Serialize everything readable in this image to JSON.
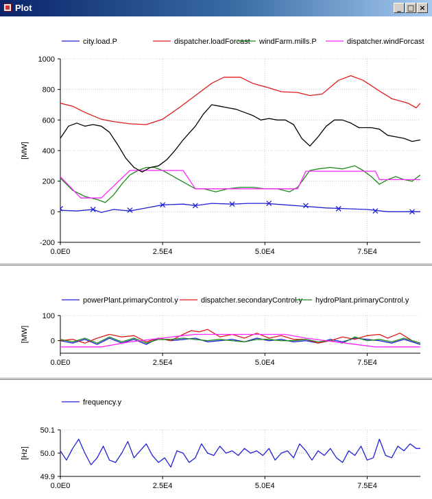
{
  "window": {
    "title": "Plot"
  },
  "colors": {
    "blue": "#1f1fd6",
    "red": "#e01a1a",
    "green": "#1a8a1a",
    "magenta": "#ff22ff",
    "black": "#000000"
  },
  "icons": {
    "app": "plot-app-icon",
    "minimize": "minimize-icon",
    "maximize": "maximize-icon",
    "close": "close-icon"
  },
  "chart_data": [
    {
      "type": "line",
      "id": "power",
      "title": "",
      "xlabel": "",
      "ylabel": "[MW]",
      "xlim": [
        0,
        88000
      ],
      "ylim": [
        -200,
        1000
      ],
      "yticks": [
        -200,
        0,
        200,
        400,
        600,
        800,
        1000
      ],
      "ytick_labels": [
        "-200",
        "0",
        "200",
        "400",
        "600",
        "800",
        "1000"
      ],
      "xticks": [
        0,
        25000,
        50000,
        75000
      ],
      "xtick_labels": [
        "0.0E0",
        "2.5E4",
        "5.0E4",
        "7.5E4"
      ],
      "grid": true,
      "legend": "top",
      "series": [
        {
          "name": "city.load.P",
          "color": "#1f1fd6",
          "marker": "x",
          "x": [
            0,
            4000,
            8000,
            10000,
            13000,
            17000,
            20000,
            25000,
            30000,
            33000,
            37000,
            42000,
            46000,
            50000,
            55000,
            60000,
            65000,
            70000,
            75000,
            80000,
            85000,
            88000
          ],
          "y": [
            10,
            5,
            15,
            -5,
            15,
            5,
            20,
            45,
            50,
            40,
            55,
            50,
            55,
            55,
            45,
            35,
            25,
            20,
            15,
            0,
            0,
            0
          ],
          "marker_x": [
            0,
            8000,
            17000,
            25000,
            33000,
            42000,
            51000,
            60000,
            68000,
            77000,
            86000
          ],
          "marker_y": [
            20,
            15,
            10,
            45,
            40,
            50,
            55,
            40,
            20,
            5,
            0
          ]
        },
        {
          "name": "dispatcher.loadForcast",
          "color": "#e01a1a",
          "x": [
            0,
            3000,
            6000,
            10000,
            13000,
            17000,
            21000,
            25000,
            29000,
            33000,
            37000,
            40000,
            44000,
            47000,
            51000,
            54000,
            58000,
            61000,
            64000,
            68000,
            71000,
            74000,
            78000,
            81000,
            85000,
            87000,
            88000
          ],
          "y": [
            710,
            690,
            650,
            605,
            590,
            575,
            570,
            605,
            680,
            760,
            840,
            880,
            880,
            840,
            810,
            785,
            780,
            760,
            770,
            860,
            890,
            860,
            790,
            740,
            710,
            680,
            710
          ]
        },
        {
          "name": "windFarm.mills.P",
          "color": "#1a8a1a",
          "x": [
            0,
            3000,
            6000,
            9000,
            11000,
            13000,
            15000,
            17000,
            19000,
            21000,
            23000,
            25000,
            27000,
            29000,
            31000,
            33000,
            35000,
            38000,
            41000,
            44000,
            47000,
            50000,
            53000,
            56000,
            58000,
            61000,
            63000,
            66000,
            69000,
            72000,
            74000,
            76000,
            78000,
            80000,
            82000,
            84000,
            86000,
            88000
          ],
          "y": [
            220,
            140,
            100,
            80,
            60,
            110,
            180,
            240,
            270,
            290,
            290,
            270,
            240,
            210,
            180,
            150,
            150,
            130,
            150,
            160,
            160,
            150,
            150,
            130,
            160,
            270,
            280,
            290,
            280,
            300,
            270,
            230,
            180,
            210,
            230,
            210,
            200,
            240
          ]
        },
        {
          "name": "dispatcher.windForcast",
          "color": "#ff22ff",
          "x": [
            0,
            5000,
            10000,
            17000,
            30000,
            33000,
            55000,
            58000,
            60000,
            77000,
            78000,
            88000
          ],
          "y": [
            230,
            90,
            90,
            270,
            270,
            150,
            150,
            150,
            265,
            265,
            210,
            210
          ]
        },
        {
          "name": "",
          "color": "#000000",
          "x": [
            0,
            2000,
            4000,
            6000,
            8000,
            10000,
            12000,
            14000,
            16000,
            18000,
            20000,
            22000,
            24000,
            26000,
            28000,
            30000,
            33000,
            35000,
            37000,
            39000,
            41000,
            43000,
            45000,
            47000,
            49000,
            51000,
            53000,
            55000,
            57000,
            59000,
            61000,
            63000,
            65000,
            67000,
            69000,
            71000,
            73000,
            76000,
            78000,
            80000,
            82000,
            84000,
            86000,
            88000
          ],
          "y": [
            480,
            560,
            580,
            560,
            570,
            560,
            520,
            440,
            350,
            290,
            260,
            290,
            300,
            340,
            400,
            470,
            560,
            640,
            700,
            690,
            680,
            670,
            650,
            630,
            600,
            610,
            600,
            600,
            570,
            480,
            430,
            490,
            560,
            600,
            600,
            580,
            550,
            550,
            540,
            500,
            490,
            480,
            460,
            470
          ]
        }
      ]
    },
    {
      "type": "line",
      "id": "control",
      "title": "",
      "xlabel": "",
      "ylabel": "[MW]",
      "xlim": [
        0,
        88000
      ],
      "ylim": [
        -50,
        100
      ],
      "yticks": [
        0,
        100
      ],
      "ytick_labels": [
        "0",
        "100"
      ],
      "xticks": [
        0,
        25000,
        50000,
        75000
      ],
      "xtick_labels": [
        "0.0E0",
        "2.5E4",
        "5.0E4",
        "7.5E4"
      ],
      "grid": true,
      "legend": "top",
      "series": [
        {
          "name": "powerPlant.primaryControl.y",
          "color": "#1f1fd6",
          "x": [
            0,
            3000,
            6000,
            9000,
            12000,
            15000,
            18000,
            21000,
            24000,
            27000,
            30000,
            33000,
            36000,
            39000,
            42000,
            45000,
            48000,
            51000,
            54000,
            57000,
            60000,
            63000,
            66000,
            69000,
            72000,
            75000,
            78000,
            81000,
            84000,
            88000
          ],
          "y": [
            0,
            -10,
            5,
            -15,
            10,
            -10,
            5,
            -15,
            10,
            0,
            5,
            10,
            -5,
            0,
            5,
            -5,
            10,
            0,
            5,
            -5,
            0,
            -10,
            5,
            -5,
            10,
            5,
            0,
            -10,
            5,
            -15
          ]
        },
        {
          "name": "dispatcher.secondaryControl.y",
          "color": "#e01a1a",
          "x": [
            0,
            3000,
            6000,
            9000,
            12000,
            15000,
            18000,
            21000,
            24000,
            27000,
            30000,
            32000,
            34000,
            36000,
            39000,
            42000,
            45000,
            48000,
            51000,
            54000,
            57000,
            60000,
            63000,
            66000,
            69000,
            72000,
            75000,
            78000,
            80000,
            83000,
            86000,
            88000
          ],
          "y": [
            0,
            5,
            -10,
            10,
            25,
            15,
            20,
            -5,
            10,
            0,
            25,
            40,
            35,
            45,
            15,
            25,
            10,
            30,
            10,
            20,
            5,
            5,
            -10,
            0,
            15,
            5,
            20,
            25,
            10,
            30,
            0,
            -10
          ]
        },
        {
          "name": "hydroPlant.primaryControl.y",
          "color": "#1a8a1a",
          "x": [
            0,
            3000,
            6000,
            9000,
            12000,
            15000,
            18000,
            21000,
            24000,
            27000,
            30000,
            33000,
            36000,
            39000,
            42000,
            45000,
            48000,
            51000,
            54000,
            57000,
            60000,
            63000,
            66000,
            69000,
            72000,
            75000,
            78000,
            81000,
            84000,
            88000
          ],
          "y": [
            5,
            -5,
            10,
            -10,
            15,
            -5,
            10,
            -10,
            5,
            5,
            10,
            5,
            0,
            5,
            0,
            -5,
            5,
            5,
            0,
            0,
            5,
            -5,
            0,
            -10,
            15,
            0,
            5,
            -5,
            10,
            -10
          ]
        },
        {
          "name": "",
          "color": "#ff22ff",
          "x": [
            0,
            10000,
            17000,
            30000,
            33000,
            55000,
            60000,
            77000,
            78000,
            88000
          ],
          "y": [
            -25,
            -25,
            -5,
            20,
            25,
            25,
            10,
            -25,
            -25,
            -25
          ]
        }
      ]
    },
    {
      "type": "line",
      "id": "frequency",
      "title": "",
      "xlabel": "",
      "ylabel": "[Hz]",
      "xlim": [
        0,
        88000
      ],
      "ylim": [
        49.9,
        50.1
      ],
      "yticks": [
        49.9,
        50.0,
        50.1
      ],
      "ytick_labels": [
        "49.9",
        "50.0",
        "50.1"
      ],
      "xticks": [
        0,
        25000,
        50000,
        75000
      ],
      "xtick_labels": [
        "0.0E0",
        "2.5E4",
        "5.0E4",
        "7.5E4"
      ],
      "grid": true,
      "legend": "top",
      "series": [
        {
          "name": "frequency.y",
          "color": "#1f1fd6",
          "x": [
            0,
            1500,
            3000,
            4500,
            6000,
            7500,
            9000,
            10500,
            12000,
            13500,
            15000,
            16500,
            18000,
            19500,
            21000,
            22500,
            24000,
            25500,
            27000,
            28500,
            30000,
            31500,
            33000,
            34500,
            36000,
            37500,
            39000,
            40500,
            42000,
            43500,
            45000,
            46500,
            48000,
            49500,
            51000,
            52500,
            54000,
            55500,
            57000,
            58500,
            60000,
            61500,
            63000,
            64500,
            66000,
            67500,
            69000,
            70500,
            72000,
            73500,
            75000,
            76500,
            78000,
            79500,
            81000,
            82500,
            84000,
            85500,
            87000,
            88000
          ],
          "y": [
            50.01,
            49.97,
            50.02,
            50.06,
            50.0,
            49.95,
            49.98,
            50.03,
            49.97,
            49.96,
            50.0,
            50.05,
            49.98,
            50.01,
            50.04,
            49.99,
            49.96,
            49.98,
            49.94,
            50.01,
            50.0,
            49.96,
            49.98,
            50.04,
            50.0,
            49.99,
            50.03,
            50.0,
            50.01,
            49.99,
            50.02,
            50.0,
            50.01,
            49.99,
            50.02,
            49.97,
            50.0,
            50.01,
            49.98,
            50.04,
            50.01,
            49.97,
            50.01,
            49.99,
            50.02,
            49.98,
            49.96,
            50.01,
            49.99,
            50.03,
            49.97,
            49.98,
            50.06,
            49.99,
            49.98,
            50.03,
            50.01,
            50.04,
            50.02,
            50.02
          ]
        }
      ]
    }
  ]
}
